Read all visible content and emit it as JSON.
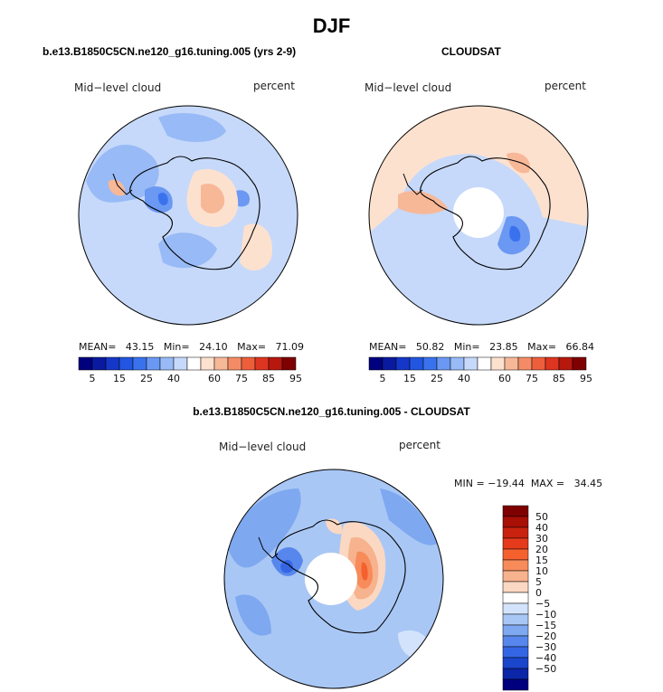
{
  "page": {
    "title": "DJF",
    "panels": [
      {
        "id": "model",
        "title": "b.e13.B1850C5CN.ne120_g16.tuning.005 (yrs 2-9)",
        "field_label": "Mid−level cloud",
        "units": "percent",
        "stats": "MEAN=   43.15   Min=   24.10   Max=   71.09"
      },
      {
        "id": "obs",
        "title": "CLOUDSAT",
        "field_label": "Mid−level cloud",
        "units": "percent",
        "stats": "MEAN=   50.82   Min=   23.85   Max=   66.84"
      },
      {
        "id": "diff",
        "title": "b.e13.B1850C5CN.ne120_g16.tuning.005 - CLOUDSAT",
        "field_label": "Mid−level cloud",
        "units": "percent",
        "stats": "MIN = −19.44  MAX =   34.45"
      }
    ]
  },
  "chart_data": [
    {
      "type": "heatmap",
      "title": "b.e13.B1850C5CN.ne120_g16.tuning.005 (yrs 2-9)",
      "projection": "south-polar-stereographic",
      "variable": "Mid−level cloud",
      "units": "percent",
      "stats": {
        "mean": 43.15,
        "min": 24.1,
        "max": 71.09
      },
      "colorbar": {
        "orientation": "horizontal",
        "tick_labels": [
          "5",
          "15",
          "25",
          "40",
          "60",
          "75",
          "85",
          "95"
        ],
        "colors": [
          "#00007f",
          "#0a1aa0",
          "#1537c8",
          "#2255e0",
          "#3a72ee",
          "#6a98f2",
          "#98baf6",
          "#c6d9fa",
          "#ffffff",
          "#fde1cf",
          "#f7b898",
          "#f38c66",
          "#ed5f3b",
          "#dd3520",
          "#b7180d",
          "#7f0000"
        ]
      }
    },
    {
      "type": "heatmap",
      "title": "CLOUDSAT",
      "projection": "south-polar-stereographic",
      "variable": "Mid−level cloud",
      "units": "percent",
      "stats": {
        "mean": 50.82,
        "min": 23.85,
        "max": 66.84
      },
      "colorbar": {
        "orientation": "horizontal",
        "tick_labels": [
          "5",
          "15",
          "25",
          "40",
          "60",
          "75",
          "85",
          "95"
        ],
        "colors": [
          "#00007f",
          "#0a1aa0",
          "#1537c8",
          "#2255e0",
          "#3a72ee",
          "#6a98f2",
          "#98baf6",
          "#c6d9fa",
          "#ffffff",
          "#fde1cf",
          "#f7b898",
          "#f38c66",
          "#ed5f3b",
          "#dd3520",
          "#b7180d",
          "#7f0000"
        ]
      }
    },
    {
      "type": "heatmap",
      "title": "b.e13.B1850C5CN.ne120_g16.tuning.005 - CLOUDSAT",
      "projection": "south-polar-stereographic",
      "variable": "Mid−level cloud",
      "units": "percent",
      "stats": {
        "min": -19.44,
        "max": 34.45
      },
      "colorbar": {
        "orientation": "vertical",
        "tick_labels": [
          "50",
          "40",
          "30",
          "20",
          "15",
          "10",
          "5",
          "0",
          "−5",
          "−10",
          "−15",
          "−20",
          "−30",
          "−40",
          "−50"
        ],
        "colors": [
          "#7f0000",
          "#a80f05",
          "#c9220e",
          "#e63a1c",
          "#f5602f",
          "#f78b5a",
          "#f7b28e",
          "#fbd8c2",
          "#ffffff",
          "#d2e3fb",
          "#a9c7f5",
          "#7ea8f0",
          "#5787ec",
          "#3466e4",
          "#1a46cc",
          "#0b26a6",
          "#00007f"
        ]
      }
    }
  ]
}
